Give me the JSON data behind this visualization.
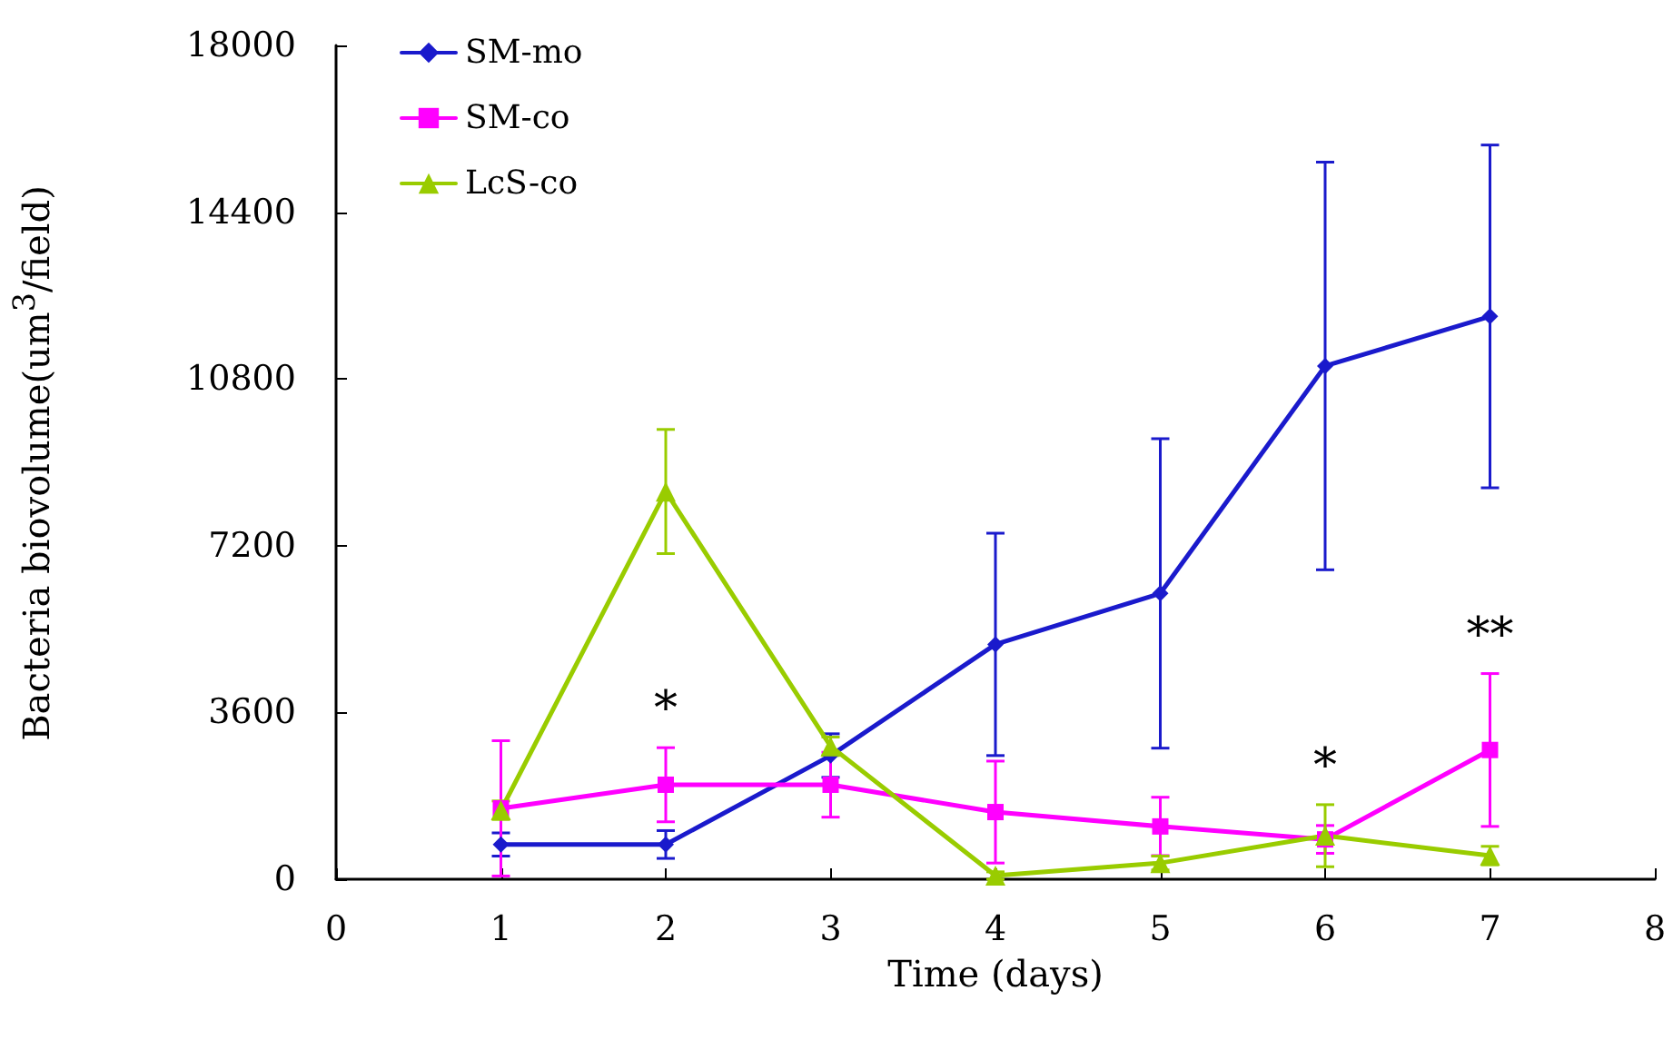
{
  "chart_data": {
    "type": "line",
    "xlabel": "Time (days)",
    "ylabel": "Bacteria biovolume(um$^{3}$/field)",
    "x": [
      1,
      2,
      3,
      4,
      5,
      6,
      7
    ],
    "series": [
      {
        "name": "SM-mo",
        "color": "#1a1acc",
        "marker": "diamond",
        "values": [
          750,
          750,
          2670,
          5070,
          6170,
          11080,
          12150
        ],
        "errors": [
          250,
          300,
          470,
          2400,
          3340,
          4400,
          3700
        ]
      },
      {
        "name": "SM-co",
        "color": "#ff00ff",
        "marker": "square",
        "values": [
          1530,
          2040,
          2040,
          1450,
          1140,
          860,
          2790
        ],
        "errors": [
          1460,
          800,
          700,
          1100,
          630,
          300,
          1650
        ]
      },
      {
        "name": "LcS-co",
        "color": "#99cc00",
        "marker": "triangle",
        "values": [
          1490,
          8370,
          2870,
          80,
          350,
          940,
          510
        ],
        "errors": [
          200,
          1340,
          200,
          80,
          150,
          670,
          200
        ]
      }
    ],
    "xlim": [
      0,
      8
    ],
    "xticks": [
      0,
      1,
      2,
      3,
      4,
      5,
      6,
      7,
      8
    ],
    "ylim": [
      0,
      18000
    ],
    "yticks": [
      0,
      3600,
      7200,
      10800,
      14400,
      18000
    ],
    "annotations": [
      {
        "text": "*",
        "x": 2,
        "y": 2840
      },
      {
        "text": "*",
        "x": 6,
        "y": 1610
      },
      {
        "text": "**",
        "x": 7,
        "y": 4440
      }
    ],
    "grid": false,
    "legend": "top left"
  }
}
